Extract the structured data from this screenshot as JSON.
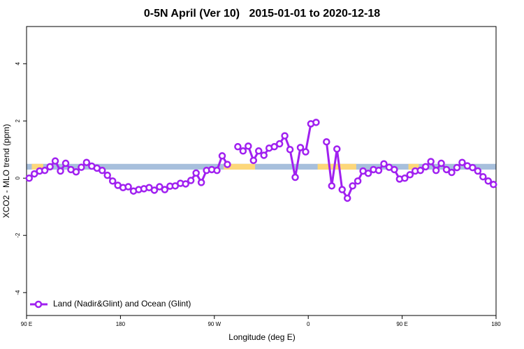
{
  "chart_data": {
    "type": "line",
    "title": "0-5N April (Ver 10)   2015-01-01 to 2020-12-18",
    "xlabel": "Longitude (deg E)",
    "ylabel": "XCO2 - MLO trend (ppm)",
    "xlim": [
      90,
      540
    ],
    "xticks": [
      {
        "value": 90,
        "label": "90 E"
      },
      180,
      {
        "value": 270,
        "label": "90 W"
      },
      {
        "value": 360,
        "label": "0"
      },
      {
        "value": 450,
        "label": "90 E"
      },
      {
        "value": 540,
        "label": "180"
      }
    ],
    "ylim": [
      -4.8,
      5.3
    ],
    "yticks": [
      -4,
      -2,
      0,
      2,
      4
    ],
    "band_ylim": [
      0.3,
      0.5
    ],
    "band_color": "#a7bfdc",
    "land_color": "#fdd77a",
    "land_segments": [
      [
        95,
        106
      ],
      [
        279,
        309
      ],
      [
        369,
        406
      ],
      [
        456,
        466
      ]
    ],
    "legend": "bottom-left",
    "x": [
      92.5,
      97.5,
      102.5,
      107.5,
      112.5,
      117.5,
      122.5,
      127.5,
      132.5,
      137.5,
      142.5,
      147.5,
      152.5,
      157.5,
      162.5,
      167.5,
      172.5,
      177.5,
      182.5,
      187.5,
      192.5,
      197.5,
      202.5,
      207.5,
      212.5,
      217.5,
      222.5,
      227.5,
      232.5,
      237.5,
      242.5,
      247.5,
      252.5,
      257.5,
      262.5,
      267.5,
      272.5,
      277.5,
      282.5,
      287.5,
      292.5,
      297.5,
      302.5,
      307.5,
      312.5,
      317.5,
      322.5,
      327.5,
      332.5,
      337.5,
      342.5,
      347.5,
      352.5,
      357.5,
      362.5,
      367.5,
      372.5,
      377.5,
      382.5,
      387.5,
      392.5,
      397.5,
      402.5,
      407.5,
      412.5,
      417.5,
      422.5,
      427.5,
      432.5,
      437.5,
      442.5,
      447.5,
      452.5,
      457.5,
      462.5,
      467.5,
      472.5,
      477.5,
      482.5,
      487.5,
      492.5,
      497.5,
      502.5,
      507.5,
      512.5,
      517.5,
      522.5,
      527.5,
      532.5,
      537.5
    ],
    "series": [
      {
        "name": "Land (Nadir&Glint) and Ocean (Glint)",
        "color": "#a020f0",
        "values": [
          0.0,
          0.15,
          0.25,
          0.27,
          0.4,
          0.6,
          0.25,
          0.52,
          0.3,
          0.22,
          0.38,
          0.55,
          0.42,
          0.35,
          0.27,
          0.1,
          -0.1,
          -0.25,
          -0.33,
          -0.3,
          -0.45,
          -0.4,
          -0.37,
          -0.33,
          -0.42,
          -0.3,
          -0.4,
          -0.28,
          -0.27,
          -0.18,
          -0.2,
          -0.08,
          0.18,
          -0.15,
          0.27,
          0.3,
          0.27,
          0.78,
          0.48,
          null,
          1.1,
          0.95,
          1.12,
          0.62,
          0.95,
          0.8,
          1.05,
          1.1,
          1.2,
          1.48,
          1.0,
          0.03,
          1.07,
          0.92,
          1.9,
          1.95,
          null,
          1.27,
          -0.27,
          1.02,
          -0.4,
          -0.7,
          -0.27,
          -0.1,
          0.25,
          0.17,
          0.3,
          0.27,
          0.5,
          0.38,
          0.3,
          -0.03,
          0.0,
          0.12,
          0.25,
          0.27,
          0.4,
          0.58,
          0.27,
          0.52,
          0.3,
          0.2,
          0.37,
          0.55,
          0.43,
          0.37,
          0.25,
          0.05,
          -0.1,
          -0.22
        ]
      }
    ]
  }
}
